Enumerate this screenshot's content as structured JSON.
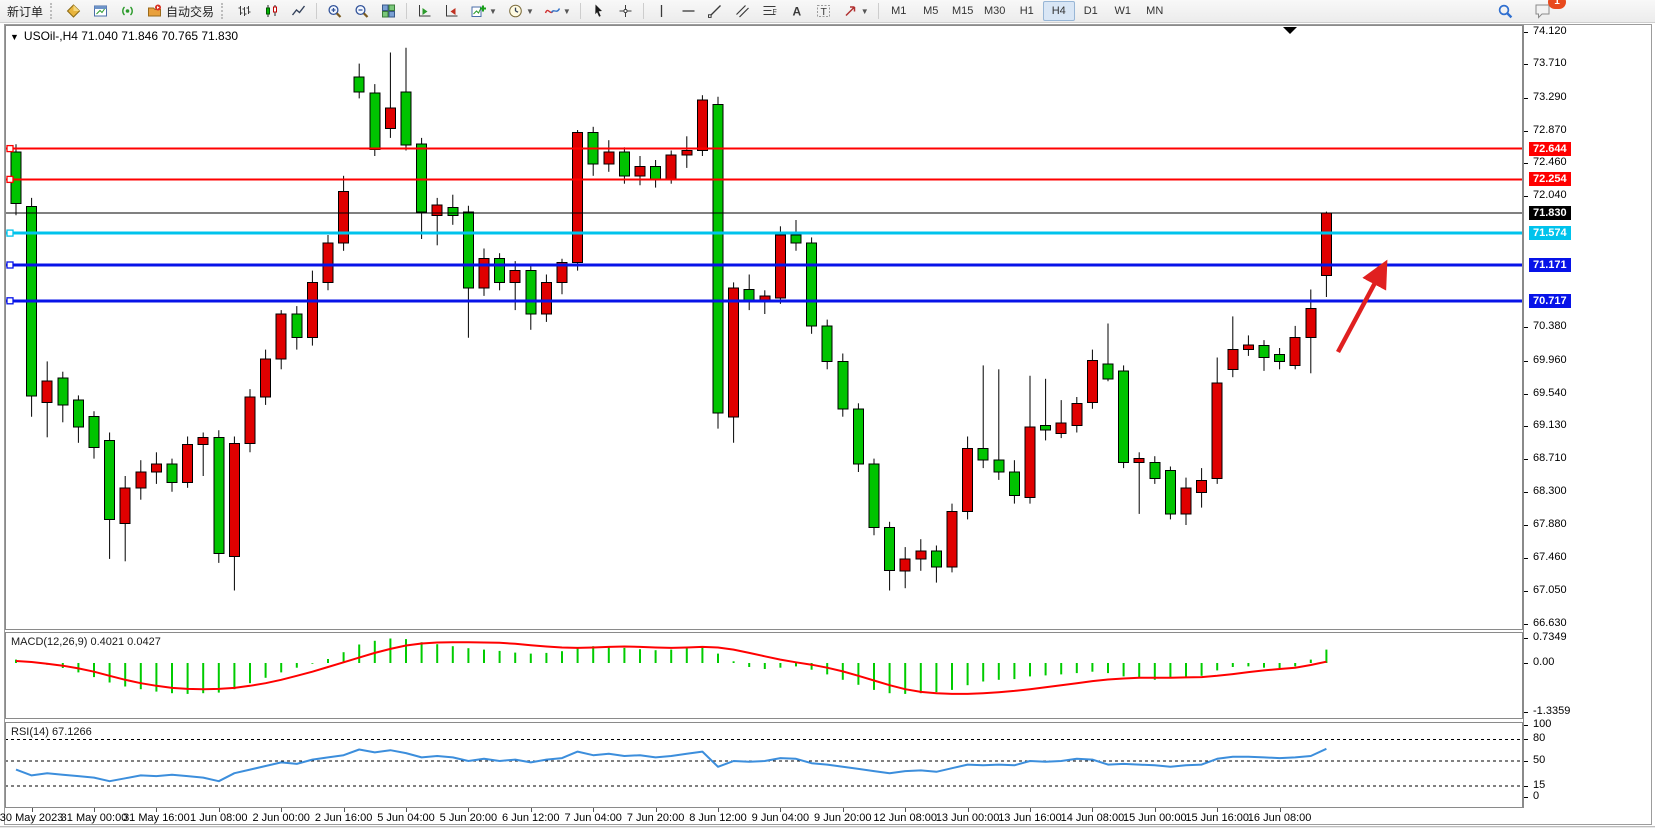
{
  "toolbar": {
    "new_order_label": "新订单",
    "auto_trading_label": "自动交易",
    "groups": [
      {
        "items": [
          {
            "icon": "new-order",
            "name": "new-order-button",
            "label_key": "new_order_label"
          }
        ]
      },
      {
        "items": [
          {
            "icon": "gold-diamond",
            "name": "market-watch-button"
          },
          {
            "icon": "chart-window",
            "name": "new-chart-button"
          },
          {
            "icon": "signal",
            "name": "signals-button"
          },
          {
            "icon": "autotrade",
            "name": "auto-trading-button",
            "label_key": "auto_trading_label"
          }
        ]
      },
      {
        "items": [
          {
            "icon": "bar-chart",
            "name": "bar-chart-button"
          },
          {
            "icon": "candle-chart",
            "name": "candlestick-chart-button"
          },
          {
            "icon": "line-chart",
            "name": "line-chart-button"
          }
        ]
      },
      {
        "items": [
          {
            "icon": "zoom-in",
            "name": "zoom-in-button"
          },
          {
            "icon": "zoom-out",
            "name": "zoom-out-button"
          },
          {
            "icon": "tile-windows",
            "name": "tile-windows-button"
          }
        ]
      },
      {
        "items": [
          {
            "icon": "chart-shift",
            "name": "chart-shift-button"
          },
          {
            "icon": "chart-autoscroll",
            "name": "auto-scroll-button"
          },
          {
            "icon": "add-chart",
            "name": "profiles-button",
            "dropdown": true
          },
          {
            "icon": "clock",
            "name": "periods-menu-button",
            "dropdown": true
          },
          {
            "icon": "indicator",
            "name": "indicators-button",
            "dropdown": true
          }
        ]
      },
      {
        "items": [
          {
            "icon": "cursor",
            "name": "cursor-button"
          },
          {
            "icon": "crosshair",
            "name": "crosshair-button"
          }
        ]
      },
      {
        "items": [
          {
            "icon": "vline",
            "name": "vertical-line-button"
          },
          {
            "icon": "hline",
            "name": "horizontal-line-button"
          },
          {
            "icon": "trendline",
            "name": "trendline-button"
          },
          {
            "icon": "channel",
            "name": "equidistant-channel-button"
          },
          {
            "icon": "fibo",
            "name": "fibonacci-button"
          },
          {
            "icon": "text-a",
            "name": "text-button"
          },
          {
            "icon": "label-t",
            "name": "text-label-button"
          },
          {
            "icon": "arrows",
            "name": "arrows-button",
            "dropdown": true
          }
        ]
      }
    ],
    "timeframes": [
      "M1",
      "M5",
      "M15",
      "M30",
      "H1",
      "H4",
      "D1",
      "W1",
      "MN"
    ],
    "active_timeframe": "H4",
    "notification_badge": "1"
  },
  "chart": {
    "symbol_info": "USOil-,H4  71.040 71.846 70.765 71.830",
    "price_axis_ticks": [
      "74.120",
      "73.710",
      "73.290",
      "72.870",
      "72.460",
      "72.040",
      "70.380",
      "69.960",
      "69.540",
      "69.130",
      "68.710",
      "68.300",
      "67.880",
      "67.460",
      "67.050",
      "66.630"
    ],
    "levels": [
      {
        "price": "72.644",
        "value": 72.644,
        "color": "#FF0000",
        "thickness": 2
      },
      {
        "price": "72.254",
        "value": 72.254,
        "color": "#FF0000",
        "thickness": 2
      },
      {
        "price": "71.830",
        "value": 71.83,
        "color": "#000000",
        "thickness": 1,
        "role": "bid-price"
      },
      {
        "price": "71.574",
        "value": 71.574,
        "color": "#00C3EC",
        "thickness": 3
      },
      {
        "price": "71.171",
        "value": 71.171,
        "color": "#0713E8",
        "thickness": 3
      },
      {
        "price": "70.717",
        "value": 70.717,
        "color": "#0713E8",
        "thickness": 3
      }
    ],
    "time_labels": [
      "30 May 2023",
      "31 May 00:00",
      "31 May 16:00",
      "1 Jun 08:00",
      "2 Jun 00:00",
      "2 Jun 16:00",
      "5 Jun 04:00",
      "5 Jun 20:00",
      "6 Jun 12:00",
      "7 Jun 04:00",
      "7 Jun 20:00",
      "8 Jun 12:00",
      "9 Jun 04:00",
      "9 Jun 20:00",
      "12 Jun 08:00",
      "13 Jun 00:00",
      "13 Jun 16:00",
      "14 Jun 08:00",
      "15 Jun 00:00",
      "15 Jun 16:00",
      "16 Jun 08:00"
    ],
    "colors": {
      "bull": "#E00000",
      "bear": "#00C400",
      "wick": "#000000",
      "macd_hist": "#00CB00",
      "macd_signal": "#FF0000",
      "rsi_line": "#3C8EDC",
      "arrow": "#E02020"
    }
  },
  "chart_data": {
    "type": "candlestick",
    "symbol": "USOil",
    "timeframe": "H4",
    "ohlc_display": {
      "open": "71.040",
      "high": "71.846",
      "low": "70.765",
      "close": "71.830"
    },
    "ylim": [
      66.42,
      74.21
    ],
    "candles": [
      [
        72.6,
        72.7,
        71.8,
        71.95
      ],
      [
        71.91,
        72.02,
        69.25,
        69.51
      ],
      [
        69.43,
        69.95,
        68.99,
        69.7
      ],
      [
        69.74,
        69.82,
        69.18,
        69.4
      ],
      [
        69.46,
        69.52,
        68.92,
        69.12
      ],
      [
        69.25,
        69.32,
        68.72,
        68.86
      ],
      [
        68.95,
        69.05,
        67.45,
        67.95
      ],
      [
        67.9,
        68.5,
        67.42,
        68.35
      ],
      [
        68.35,
        68.7,
        68.2,
        68.55
      ],
      [
        68.55,
        68.8,
        68.4,
        68.65
      ],
      [
        68.65,
        68.72,
        68.3,
        68.42
      ],
      [
        68.42,
        69.0,
        68.35,
        68.9
      ],
      [
        68.9,
        69.05,
        68.5,
        68.99
      ],
      [
        68.99,
        69.08,
        67.4,
        67.52
      ],
      [
        67.48,
        69.0,
        67.05,
        68.91
      ],
      [
        68.91,
        69.6,
        68.8,
        69.5
      ],
      [
        69.5,
        70.1,
        69.4,
        69.98
      ],
      [
        69.98,
        70.6,
        69.85,
        70.55
      ],
      [
        70.55,
        70.65,
        70.1,
        70.25
      ],
      [
        70.25,
        71.1,
        70.15,
        70.95
      ],
      [
        70.95,
        71.55,
        70.85,
        71.45
      ],
      [
        71.45,
        72.3,
        71.35,
        72.1
      ],
      [
        73.55,
        73.72,
        73.28,
        73.36
      ],
      [
        73.35,
        73.46,
        72.55,
        72.63
      ],
      [
        72.9,
        73.86,
        72.78,
        73.16
      ],
      [
        73.36,
        73.92,
        72.62,
        72.69
      ],
      [
        72.7,
        72.78,
        71.5,
        71.84
      ],
      [
        71.8,
        72.02,
        71.42,
        71.93
      ],
      [
        71.9,
        72.06,
        71.68,
        71.8
      ],
      [
        71.84,
        71.92,
        70.25,
        70.88
      ],
      [
        70.88,
        71.38,
        70.78,
        71.25
      ],
      [
        71.25,
        71.32,
        70.85,
        70.95
      ],
      [
        70.95,
        71.22,
        70.6,
        71.1
      ],
      [
        71.1,
        71.18,
        70.35,
        70.55
      ],
      [
        70.55,
        71.05,
        70.45,
        70.95
      ],
      [
        70.95,
        71.25,
        70.8,
        71.2
      ],
      [
        71.2,
        72.88,
        71.1,
        72.85
      ],
      [
        72.85,
        72.92,
        72.3,
        72.45
      ],
      [
        72.45,
        72.75,
        72.35,
        72.6
      ],
      [
        72.6,
        72.66,
        72.2,
        72.3
      ],
      [
        72.3,
        72.55,
        72.18,
        72.42
      ],
      [
        72.42,
        72.5,
        72.15,
        72.25
      ],
      [
        72.25,
        72.62,
        72.2,
        72.56
      ],
      [
        72.56,
        72.8,
        72.4,
        72.62
      ],
      [
        72.62,
        73.32,
        72.55,
        73.26
      ],
      [
        73.2,
        73.3,
        69.1,
        69.3
      ],
      [
        69.25,
        70.95,
        68.92,
        70.88
      ],
      [
        70.86,
        71.05,
        70.6,
        70.7
      ],
      [
        70.7,
        70.85,
        70.55,
        70.78
      ],
      [
        70.75,
        71.66,
        70.68,
        71.55
      ],
      [
        71.55,
        71.74,
        71.35,
        71.45
      ],
      [
        71.45,
        71.52,
        70.3,
        70.4
      ],
      [
        70.4,
        70.48,
        69.85,
        69.95
      ],
      [
        69.95,
        70.05,
        69.25,
        69.35
      ],
      [
        69.35,
        69.42,
        68.55,
        68.65
      ],
      [
        68.65,
        68.72,
        67.75,
        67.85
      ],
      [
        67.85,
        67.92,
        67.05,
        67.3
      ],
      [
        67.3,
        67.6,
        67.08,
        67.45
      ],
      [
        67.45,
        67.7,
        67.3,
        67.55
      ],
      [
        67.55,
        67.62,
        67.15,
        67.35
      ],
      [
        67.35,
        68.15,
        67.28,
        68.05
      ],
      [
        68.05,
        69.0,
        67.95,
        68.85
      ],
      [
        68.85,
        69.9,
        68.6,
        68.7
      ],
      [
        68.7,
        69.85,
        68.45,
        68.55
      ],
      [
        68.55,
        68.7,
        68.15,
        68.25
      ],
      [
        68.23,
        69.77,
        68.15,
        69.12
      ],
      [
        69.14,
        69.73,
        68.95,
        69.08
      ],
      [
        69.04,
        69.46,
        68.98,
        69.17
      ],
      [
        69.14,
        69.5,
        69.05,
        69.42
      ],
      [
        69.43,
        70.1,
        69.35,
        69.96
      ],
      [
        69.92,
        70.43,
        69.7,
        69.73
      ],
      [
        69.83,
        69.9,
        68.6,
        68.67
      ],
      [
        68.67,
        68.8,
        68.02,
        68.72
      ],
      [
        68.67,
        68.75,
        68.4,
        68.47
      ],
      [
        68.57,
        68.62,
        67.95,
        68.02
      ],
      [
        68.02,
        68.48,
        67.88,
        68.35
      ],
      [
        68.29,
        68.6,
        68.1,
        68.44
      ],
      [
        68.47,
        70.0,
        68.4,
        69.68
      ],
      [
        69.85,
        70.52,
        69.75,
        70.1
      ],
      [
        70.1,
        70.28,
        70.02,
        70.16
      ],
      [
        70.15,
        70.22,
        69.83,
        70.0
      ],
      [
        70.04,
        70.12,
        69.85,
        69.95
      ],
      [
        69.9,
        70.4,
        69.85,
        70.25
      ],
      [
        70.25,
        70.86,
        69.8,
        70.62
      ],
      [
        71.04,
        71.846,
        70.765,
        71.83
      ]
    ],
    "macd": {
      "label": "MACD(12,26,9) 0.4021 0.0427",
      "axis": [
        "0.7349",
        "0.00",
        "-1.3359"
      ],
      "histogram": [
        0.1,
        0.02,
        -0.05,
        -0.15,
        -0.28,
        -0.42,
        -0.58,
        -0.7,
        -0.78,
        -0.85,
        -0.9,
        -0.92,
        -0.9,
        -0.88,
        -0.78,
        -0.6,
        -0.44,
        -0.28,
        -0.14,
        -0.02,
        0.12,
        0.32,
        0.55,
        0.66,
        0.73,
        0.71,
        0.62,
        0.56,
        0.5,
        0.44,
        0.4,
        0.36,
        0.31,
        0.28,
        0.3,
        0.35,
        0.45,
        0.5,
        0.5,
        0.45,
        0.41,
        0.38,
        0.4,
        0.44,
        0.5,
        0.28,
        0.05,
        -0.12,
        -0.18,
        -0.14,
        -0.1,
        -0.2,
        -0.34,
        -0.5,
        -0.65,
        -0.8,
        -0.9,
        -0.92,
        -0.9,
        -0.87,
        -0.8,
        -0.66,
        -0.55,
        -0.5,
        -0.48,
        -0.4,
        -0.37,
        -0.34,
        -0.3,
        -0.26,
        -0.3,
        -0.4,
        -0.46,
        -0.5,
        -0.46,
        -0.42,
        -0.38,
        -0.22,
        -0.12,
        -0.1,
        -0.14,
        -0.15,
        -0.1,
        0.1,
        0.4
      ],
      "signal": [
        0.06,
        0.03,
        -0.02,
        -0.08,
        -0.16,
        -0.26,
        -0.38,
        -0.5,
        -0.6,
        -0.68,
        -0.74,
        -0.77,
        -0.78,
        -0.77,
        -0.74,
        -0.68,
        -0.6,
        -0.5,
        -0.38,
        -0.26,
        -0.12,
        0.02,
        0.16,
        0.3,
        0.42,
        0.52,
        0.58,
        0.61,
        0.62,
        0.62,
        0.61,
        0.6,
        0.57,
        0.53,
        0.49,
        0.46,
        0.45,
        0.46,
        0.48,
        0.49,
        0.48,
        0.46,
        0.45,
        0.46,
        0.48,
        0.46,
        0.4,
        0.3,
        0.2,
        0.1,
        0.02,
        -0.05,
        -0.14,
        -0.25,
        -0.38,
        -0.52,
        -0.66,
        -0.78,
        -0.86,
        -0.9,
        -0.92,
        -0.92,
        -0.9,
        -0.87,
        -0.83,
        -0.78,
        -0.72,
        -0.66,
        -0.6,
        -0.54,
        -0.49,
        -0.46,
        -0.44,
        -0.44,
        -0.44,
        -0.43,
        -0.42,
        -0.38,
        -0.33,
        -0.27,
        -0.22,
        -0.18,
        -0.14,
        -0.06,
        0.04
      ]
    },
    "rsi": {
      "label": "RSI(14) 67.1266",
      "axis": [
        "100",
        "80",
        "50",
        "15",
        "0"
      ],
      "dashed_levels": [
        80,
        50,
        15
      ],
      "values": [
        38,
        30,
        33,
        31,
        29,
        27,
        22,
        26,
        30,
        29,
        31,
        29,
        27,
        22,
        33,
        38,
        43,
        48,
        46,
        52,
        55,
        58,
        66,
        62,
        65,
        61,
        55,
        57,
        55,
        50,
        53,
        50,
        52,
        48,
        52,
        54,
        63,
        58,
        60,
        57,
        58,
        55,
        57,
        60,
        63,
        42,
        50,
        49,
        50,
        54,
        53,
        47,
        45,
        42,
        39,
        36,
        33,
        36,
        37,
        35,
        40,
        45,
        44,
        45,
        44,
        50,
        49,
        50,
        53,
        52,
        45,
        46,
        45,
        44,
        42,
        44,
        45,
        53,
        56,
        56,
        55,
        54,
        55,
        57,
        67
      ]
    }
  }
}
